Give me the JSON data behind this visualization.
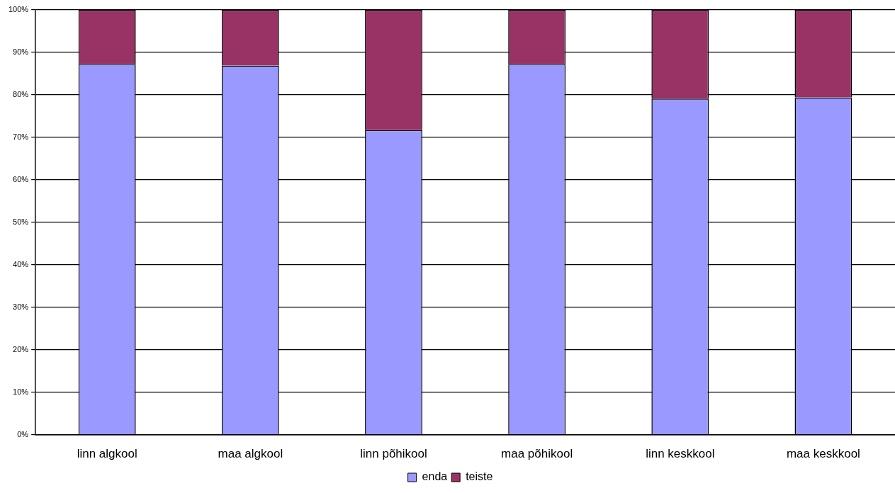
{
  "chart_data": {
    "type": "bar",
    "stacked": true,
    "categories": [
      "linn algkool",
      "maa algkool",
      "linn põhikool",
      "maa põhikool",
      "linn keskkool",
      "maa keskkool"
    ],
    "series": [
      {
        "name": "enda",
        "color": "#9999ff",
        "values": [
          87.3,
          86.9,
          71.7,
          87.3,
          79.1,
          79.4
        ]
      },
      {
        "name": "teiste",
        "color": "#993366",
        "values": [
          12.7,
          13.1,
          28.3,
          12.7,
          20.9,
          20.6
        ]
      }
    ],
    "ylim": [
      0,
      100
    ],
    "yticks": [
      {
        "value": 0,
        "label": "0%"
      },
      {
        "value": 10,
        "label": "10%"
      },
      {
        "value": 20,
        "label": "20%"
      },
      {
        "value": 30,
        "label": "30%"
      },
      {
        "value": 40,
        "label": "40%"
      },
      {
        "value": 50,
        "label": "50%"
      },
      {
        "value": 60,
        "label": "60%"
      },
      {
        "value": 70,
        "label": "70%"
      },
      {
        "value": 80,
        "label": "80%"
      },
      {
        "value": 90,
        "label": "90%"
      },
      {
        "value": 100,
        "label": "100%"
      }
    ],
    "grid": "y",
    "legend": "bottom"
  }
}
